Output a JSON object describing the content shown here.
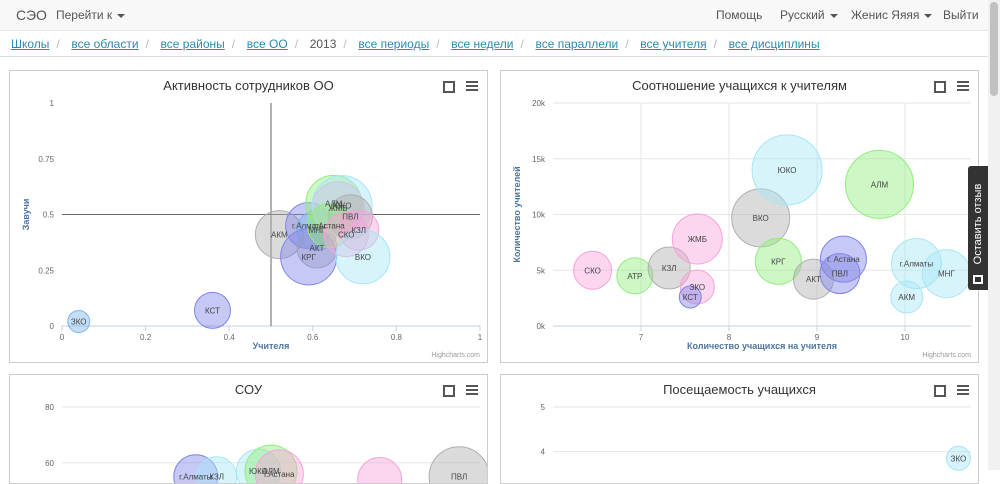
{
  "nav": {
    "brand": "СЭО",
    "goto": "Перейти к",
    "help": "Помощь",
    "lang": "Русский",
    "user": "Женис Яяяя",
    "logout": "Выйти"
  },
  "breadcrumb": [
    {
      "label": "Школы",
      "link": true
    },
    {
      "label": "все области",
      "link": true
    },
    {
      "label": "все районы",
      "link": true
    },
    {
      "label": "все ОО",
      "link": true
    },
    {
      "label": "2013",
      "link": false
    },
    {
      "label": "все периоды",
      "link": true
    },
    {
      "label": "все недели",
      "link": true
    },
    {
      "label": "все параллели",
      "link": true
    },
    {
      "label": "все учителя",
      "link": true
    },
    {
      "label": "все дисциплины",
      "link": true
    }
  ],
  "feedback": "Оставить отзыв",
  "credit": "Highcharts.com",
  "charts": [
    {
      "title": "Активность сотрудников ОО",
      "chart_data": {
        "type": "bubble",
        "xlabel": "Учителя",
        "ylabel": "Завучи",
        "xlim": [
          0,
          1
        ],
        "ylim": [
          0,
          1
        ],
        "xticks": [
          0,
          0.2,
          0.4,
          0.6,
          0.8,
          1
        ],
        "yticks": [
          0,
          0.25,
          0.5,
          0.75,
          1
        ],
        "xtick_labels": [
          "0",
          "0.2",
          "0.4",
          "0.6",
          "0.8",
          "1"
        ],
        "ytick_labels": [
          "0",
          "0.25",
          "0.5",
          "0.75",
          "1"
        ],
        "crosshair": [
          0.5,
          0.5
        ],
        "points": [
          {
            "label": "ЗКО",
            "x": 0.04,
            "y": 0.02,
            "z": 11,
            "color": "#7cb5ec"
          },
          {
            "label": "КСТ",
            "x": 0.36,
            "y": 0.07,
            "z": 18,
            "color": "#8085e9"
          },
          {
            "label": "АКМ",
            "x": 0.52,
            "y": 0.41,
            "z": 24,
            "color": "#b0b0b0"
          },
          {
            "label": "г.Алматы",
            "x": 0.59,
            "y": 0.45,
            "z": 23,
            "color": "#8085e9"
          },
          {
            "label": "МНГ",
            "x": 0.61,
            "y": 0.43,
            "z": 20,
            "color": "#7cb5ec"
          },
          {
            "label": "АКТ",
            "x": 0.61,
            "y": 0.35,
            "z": 20,
            "color": "#b0b0b0"
          },
          {
            "label": "КРГ",
            "x": 0.59,
            "y": 0.31,
            "z": 28,
            "color": "#8085e9"
          },
          {
            "label": "АЛМ",
            "x": 0.65,
            "y": 0.55,
            "z": 28,
            "color": "#90ed7d"
          },
          {
            "label": "ЖМБ",
            "x": 0.66,
            "y": 0.53,
            "z": 26,
            "color": "#f7a3d9"
          },
          {
            "label": "ЮКО",
            "x": 0.67,
            "y": 0.54,
            "z": 30,
            "color": "#a6e6f7"
          },
          {
            "label": "ПВЛ",
            "x": 0.69,
            "y": 0.49,
            "z": 22,
            "color": "#b0b0b0"
          },
          {
            "label": "г.Астана",
            "x": 0.64,
            "y": 0.45,
            "z": 22,
            "color": "#90ed7d"
          },
          {
            "label": "КЗЛ",
            "x": 0.71,
            "y": 0.43,
            "z": 20,
            "color": "#f7a3d9"
          },
          {
            "label": "СКО",
            "x": 0.68,
            "y": 0.41,
            "z": 22,
            "color": "#f7a3d9"
          },
          {
            "label": "ВКО",
            "x": 0.72,
            "y": 0.31,
            "z": 27,
            "color": "#a6e6f7"
          }
        ]
      }
    },
    {
      "title": "Соотношение учащихся к учителям",
      "chart_data": {
        "type": "bubble",
        "xlabel": "Количество учащихся на учителя",
        "ylabel": "Количество учителей",
        "xlim": [
          6.0,
          10.75
        ],
        "ylim": [
          0,
          20000
        ],
        "xticks": [
          7,
          8,
          9,
          10
        ],
        "yticks": [
          0,
          5000,
          10000,
          15000,
          20000
        ],
        "xtick_labels": [
          "7",
          "8",
          "9",
          "10"
        ],
        "ytick_labels": [
          "0k",
          "5k",
          "10k",
          "15k",
          "20k"
        ],
        "points": [
          {
            "label": "СКО",
            "x": 6.45,
            "y": 5000,
            "z": 19,
            "color": "#f7a3d9"
          },
          {
            "label": "АТР",
            "x": 6.93,
            "y": 4500,
            "z": 18,
            "color": "#90ed7d"
          },
          {
            "label": "КЗЛ",
            "x": 7.32,
            "y": 5200,
            "z": 21,
            "color": "#b0b0b0"
          },
          {
            "label": "ЖМБ",
            "x": 7.64,
            "y": 7800,
            "z": 25,
            "color": "#f7a3d9"
          },
          {
            "label": "ЗКО",
            "x": 7.64,
            "y": 3500,
            "z": 17,
            "color": "#f7a3d9"
          },
          {
            "label": "КСТ",
            "x": 7.56,
            "y": 2600,
            "z": 11,
            "color": "#8085e9"
          },
          {
            "label": "ВКО",
            "x": 8.36,
            "y": 9700,
            "z": 29,
            "color": "#b0b0b0"
          },
          {
            "label": "ЮКО",
            "x": 8.66,
            "y": 14000,
            "z": 35,
            "color": "#a6e6f7"
          },
          {
            "label": "КРГ",
            "x": 8.56,
            "y": 5800,
            "z": 23,
            "color": "#90ed7d"
          },
          {
            "label": "АКТ",
            "x": 8.96,
            "y": 4200,
            "z": 20,
            "color": "#b0b0b0"
          },
          {
            "label": "г. Астана",
            "x": 9.3,
            "y": 6000,
            "z": 23,
            "color": "#8085e9"
          },
          {
            "label": "ПВЛ",
            "x": 9.26,
            "y": 4700,
            "z": 20,
            "color": "#8085e9"
          },
          {
            "label": "АЛМ",
            "x": 9.71,
            "y": 12700,
            "z": 34,
            "color": "#90ed7d"
          },
          {
            "label": "г.Алматы",
            "x": 10.13,
            "y": 5600,
            "z": 25,
            "color": "#a6e6f7"
          },
          {
            "label": "МНГ",
            "x": 10.47,
            "y": 4700,
            "z": 24,
            "color": "#a6e6f7"
          },
          {
            "label": "АКМ",
            "x": 10.02,
            "y": 2600,
            "z": 16,
            "color": "#a6e6f7"
          }
        ]
      }
    },
    {
      "title": "СОУ",
      "chart_data": {
        "type": "bubble",
        "xlabel": "",
        "ylabel": "",
        "xlim": [
          0,
          1
        ],
        "ylim": [
          0,
          80
        ],
        "xticks": [],
        "yticks": [
          60,
          80
        ],
        "xtick_labels": [],
        "ytick_labels": [
          "60",
          "80"
        ],
        "points": [
          {
            "label": "г.Алматы",
            "x": 0.32,
            "y": 55,
            "z": 22,
            "color": "#8085e9"
          },
          {
            "label": "КЗЛ",
            "x": 0.37,
            "y": 55,
            "z": 20,
            "color": "#a6e6f7"
          },
          {
            "label": "ЮКО",
            "x": 0.47,
            "y": 57,
            "z": 22,
            "color": "#a6e6f7"
          },
          {
            "label": "АЛМ",
            "x": 0.5,
            "y": 57,
            "z": 26,
            "color": "#90ed7d"
          },
          {
            "label": "г.Астана",
            "x": 0.52,
            "y": 56,
            "z": 24,
            "color": "#f7a3d9"
          },
          {
            "label": "",
            "x": 0.76,
            "y": 54,
            "z": 22,
            "color": "#f7a3d9"
          },
          {
            "label": "ПВЛ",
            "x": 0.95,
            "y": 55,
            "z": 30,
            "color": "#b0b0b0"
          }
        ]
      }
    },
    {
      "title": "Посещаемость учащихся",
      "chart_data": {
        "type": "bubble",
        "xlabel": "",
        "ylabel": "",
        "xlim": [
          0,
          1
        ],
        "ylim": [
          0,
          5
        ],
        "xticks": [],
        "yticks": [
          4,
          5
        ],
        "xtick_labels": [],
        "ytick_labels": [
          "4",
          "5"
        ],
        "points": [
          {
            "label": "ЗКО",
            "x": 0.97,
            "y": 3.85,
            "z": 12,
            "color": "#a6e6f7"
          }
        ]
      }
    }
  ]
}
